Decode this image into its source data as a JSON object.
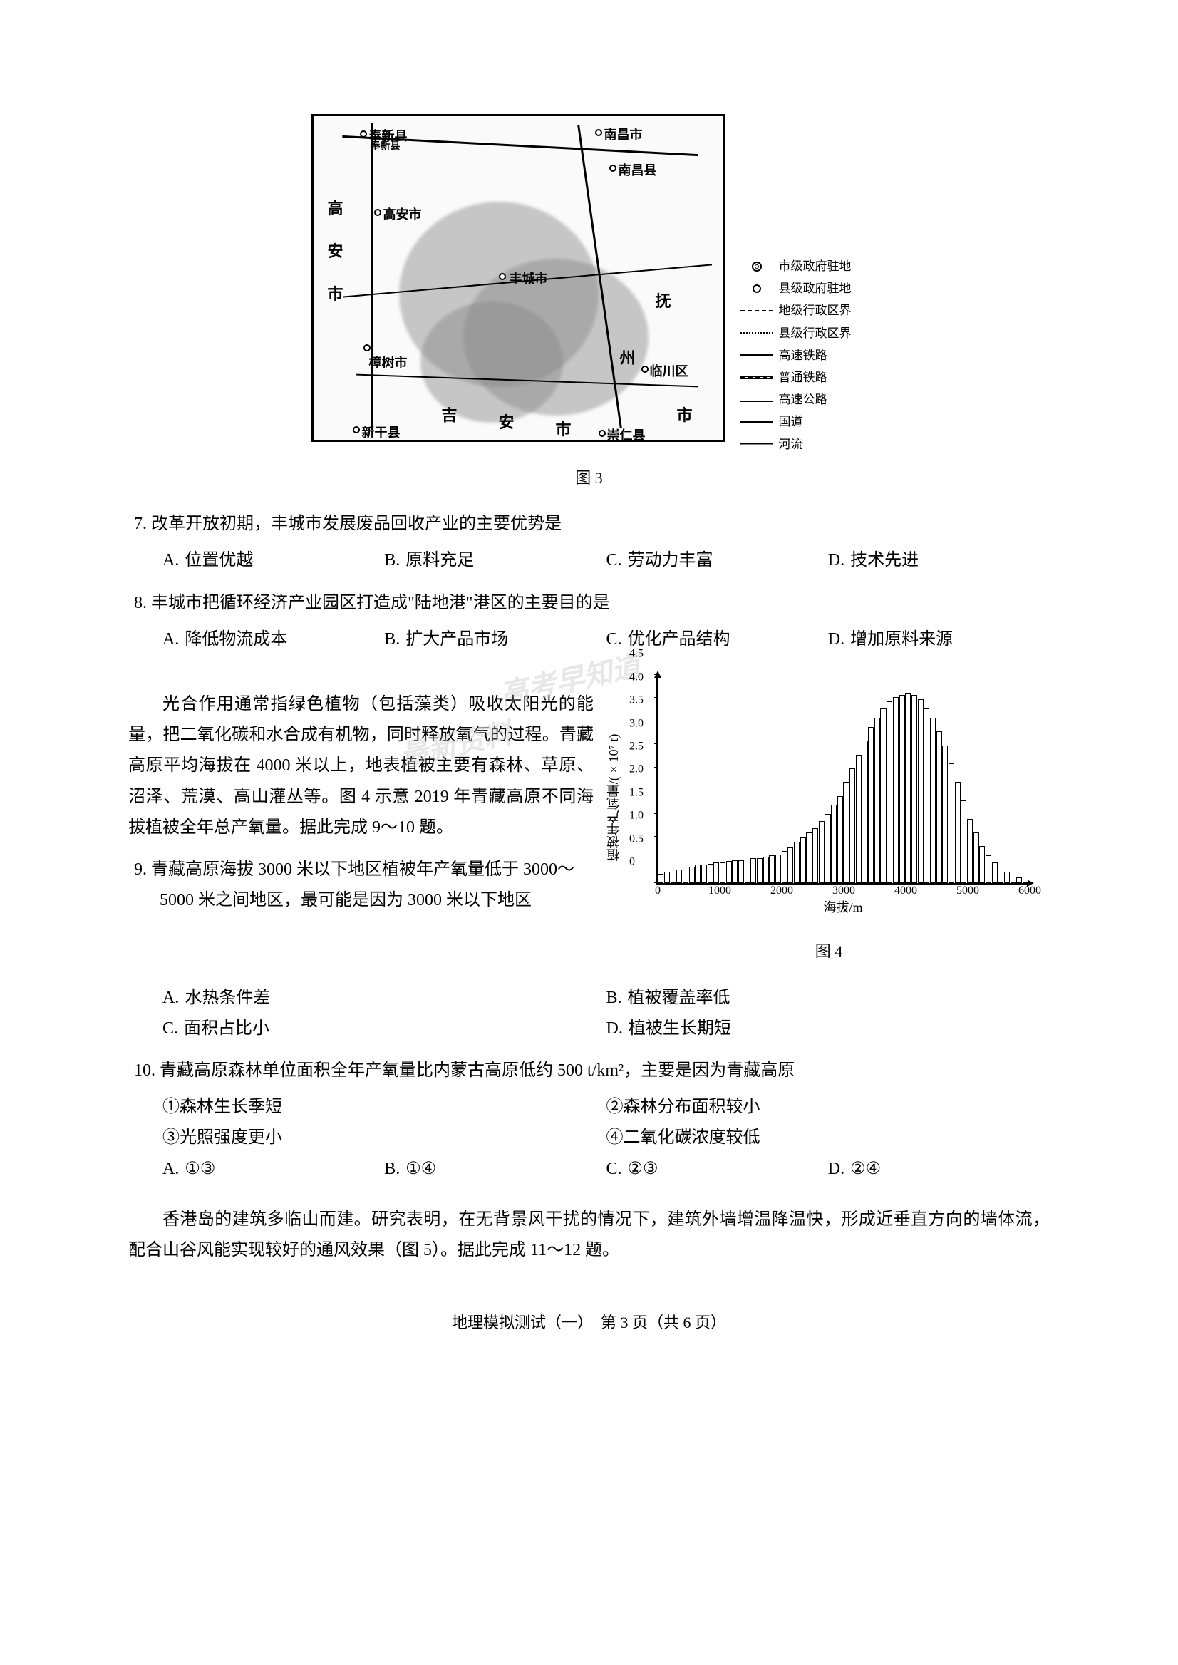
{
  "map": {
    "caption": "图 3",
    "labels": {
      "fengxin": "奉新县",
      "nanchang": "南昌市",
      "nanchangxian": "南昌县",
      "gaoanshi": "高安市",
      "gao": "高",
      "an": "安",
      "shi1": "市",
      "fengcheng": "丰城市",
      "zhangshu": "樟树市",
      "ji": "吉",
      "anlbl": "安",
      "shi2": "市",
      "fu": "抚",
      "zhou": "州",
      "shi3": "市",
      "xingan": "新干县",
      "linchuan": "临川区",
      "chongren": "崇仁县"
    },
    "legend": [
      {
        "symbol": "circle-double",
        "label": "市级政府驻地"
      },
      {
        "symbol": "circle",
        "label": "县级政府驻地"
      },
      {
        "symbol": "dashdot",
        "label": "地级行政区界"
      },
      {
        "symbol": "dots",
        "label": "县级行政区界"
      },
      {
        "symbol": "thick",
        "label": "高速铁路"
      },
      {
        "symbol": "rail",
        "label": "普通铁路"
      },
      {
        "symbol": "double",
        "label": "高速公路"
      },
      {
        "symbol": "line",
        "label": "国道"
      },
      {
        "symbol": "wave",
        "label": "河流"
      }
    ]
  },
  "q7": {
    "text": "7. 改革开放初期，丰城市发展废品回收产业的主要优势是",
    "options": {
      "A": "位置优越",
      "B": "原料充足",
      "C": "劳动力丰富",
      "D": "技术先进"
    }
  },
  "q8": {
    "text": "8. 丰城市把循环经济产业园区打造成\"陆地港\"港区的主要目的是",
    "options": {
      "A": "降低物流成本",
      "B": "扩大产品市场",
      "C": "优化产品结构",
      "D": "增加原料来源"
    }
  },
  "passage1": "光合作用通常指绿色植物（包括藻类）吸收太阳光的能量，把二氧化碳和水合成有机物，同时释放氧气的过程。青藏高原平均海拔在 4000 米以上，地表植被主要有森林、草原、沼泽、荒漠、高山灌丛等。图 4 示意 2019 年青藏高原不同海拔植被全年总产氧量。据此完成 9～10 题。",
  "chart": {
    "type": "bar",
    "caption": "图 4",
    "ylabel": "植被年产氧量/(×10⁷ t)",
    "xlabel": "海拔/m",
    "ylim": [
      0,
      4.5
    ],
    "ytick_step": 0.5,
    "yticks": [
      "0",
      "0.5",
      "1.0",
      "1.5",
      "2.0",
      "2.5",
      "3.0",
      "3.5",
      "4.0",
      "4.5"
    ],
    "xlim": [
      0,
      6000
    ],
    "xticks": [
      0,
      1000,
      2000,
      3000,
      4000,
      5000,
      6000
    ],
    "bar_count": 60,
    "values": [
      0.2,
      0.25,
      0.3,
      0.3,
      0.35,
      0.35,
      0.4,
      0.4,
      0.42,
      0.45,
      0.45,
      0.48,
      0.5,
      0.5,
      0.52,
      0.55,
      0.55,
      0.58,
      0.6,
      0.62,
      0.7,
      0.78,
      0.9,
      1.0,
      1.1,
      1.2,
      1.35,
      1.5,
      1.7,
      1.9,
      2.2,
      2.5,
      2.8,
      3.1,
      3.4,
      3.6,
      3.8,
      3.95,
      4.05,
      4.1,
      4.15,
      4.1,
      4.0,
      3.8,
      3.6,
      3.3,
      3.0,
      2.6,
      2.2,
      1.8,
      1.4,
      1.1,
      0.8,
      0.6,
      0.45,
      0.35,
      0.25,
      0.18,
      0.12,
      0.08
    ],
    "bar_fill": "#ffffff",
    "bar_border": "#000000",
    "background_color": "#ffffff"
  },
  "q9": {
    "text": "9. 青藏高原海拔 3000 米以下地区植被年产氧量低于 3000～5000 米之间地区，最可能是因为 3000 米以下地区",
    "options": {
      "A": "水热条件差",
      "B": "植被覆盖率低",
      "C": "面积占比小",
      "D": "植被生长期短"
    }
  },
  "q10": {
    "text": "10. 青藏高原森林单位面积全年产氧量比内蒙古高原低约 500 t/km²，主要是因为青藏高原",
    "subs": {
      "1": "①森林生长季短",
      "2": "②森林分布面积较小",
      "3": "③光照强度更小",
      "4": "④二氧化碳浓度较低"
    },
    "options": {
      "A": "①③",
      "B": "①④",
      "C": "②③",
      "D": "②④"
    }
  },
  "passage2": "香港岛的建筑多临山而建。研究表明，在无背景风干扰的情况下，建筑外墙增温降温快，形成近垂直方向的墙体流，配合山谷风能实现较好的通风效果（图 5）。据此完成 11～12 题。",
  "footer": "地理模拟测试（一）　第 3 页（共 6 页）",
  "watermarks": {
    "w1": "高考早知道",
    "w2": "最新资料"
  }
}
